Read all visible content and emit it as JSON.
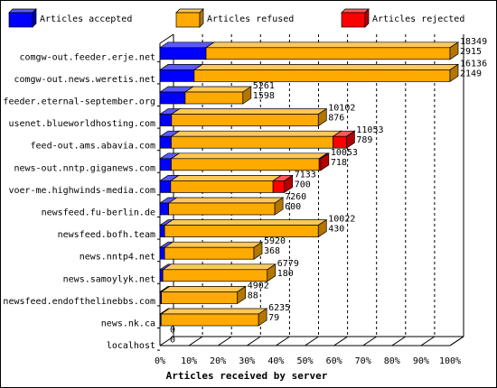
{
  "chart_data": {
    "type": "bar",
    "stacked": true,
    "orientation": "horizontal",
    "xlabel": "Articles received by server",
    "x_ticks": [
      "0%",
      "10%",
      "20%",
      "30%",
      "40%",
      "50%",
      "60%",
      "70%",
      "80%",
      "90%",
      "100%"
    ],
    "xlim": [
      0,
      100
    ],
    "legend": {
      "placement": "top",
      "entries": [
        {
          "name": "Articles accepted",
          "color": "#0000ff"
        },
        {
          "name": "Articles refused",
          "color": "#ffaa00"
        },
        {
          "name": "Articles rejected",
          "color": "#ff0000"
        }
      ]
    },
    "categories": [
      "comgw-out.feeder.erje.net",
      "comgw-out.news.weretis.net",
      "feeder.eternal-september.org",
      "usenet.blueworldhosting.com",
      "feed-out.ams.abavia.com",
      "news-out.nntp.giganews.com",
      "voer-me.highwinds-media.com",
      "newsfeed.fu-berlin.de",
      "newsfeed.bofh.team",
      "news.nntp4.net",
      "news.samoylyk.net",
      "newsfeed.endofthelinebbs.com",
      "news.nk.ca",
      "localhost"
    ],
    "series": [
      {
        "name": "Articles accepted",
        "values": [
          15.9,
          11.8,
          8.7,
          4.0,
          3.9,
          3.9,
          3.7,
          3.0,
          1.6,
          1.6,
          1.0,
          0.5,
          0.4,
          0
        ]
      },
      {
        "name": "Articles refused",
        "values": [
          84.1,
          88.2,
          19.9,
          50.6,
          55.8,
          51.0,
          35.3,
          36.6,
          53.0,
          30.8,
          36.0,
          26.2,
          33.6,
          0
        ]
      },
      {
        "name": "Articles rejected",
        "values": [
          0,
          0,
          0,
          0,
          4.6,
          0.5,
          3.9,
          0,
          0,
          0,
          0,
          0,
          0,
          0
        ]
      }
    ],
    "data_labels": [
      {
        "total": "18349",
        "accepted": "2915"
      },
      {
        "total": "16136",
        "accepted": "2149"
      },
      {
        "total": "5261",
        "accepted": "1598"
      },
      {
        "total": "10102",
        "accepted": "876"
      },
      {
        "total": "11053",
        "accepted": "789"
      },
      {
        "total": "10053",
        "accepted": "718"
      },
      {
        "total": "7133",
        "accepted": "700"
      },
      {
        "total": "7260",
        "accepted": "600"
      },
      {
        "total": "10022",
        "accepted": "430"
      },
      {
        "total": "5920",
        "accepted": "368"
      },
      {
        "total": "6779",
        "accepted": "180"
      },
      {
        "total": "4902",
        "accepted": "88"
      },
      {
        "total": "6235",
        "accepted": "79"
      },
      {
        "total": "0",
        "accepted": "0"
      }
    ]
  }
}
